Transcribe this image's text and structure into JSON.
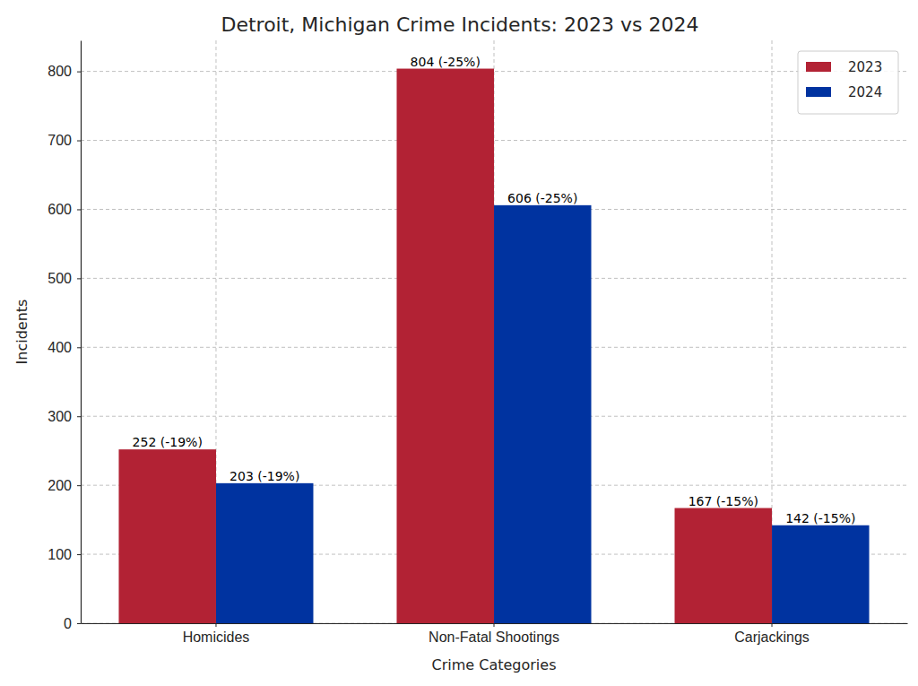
{
  "chart_data": {
    "type": "bar",
    "title": "Detroit, Michigan Crime Incidents: 2023 vs 2024",
    "x_label": "Crime Categories",
    "y_label": "Incidents",
    "categories": [
      "Homicides",
      "Non-Fatal Shootings",
      "Carjackings"
    ],
    "series": [
      {
        "name": "2023",
        "color": "#b22234",
        "values": [
          252,
          804,
          167
        ],
        "value_labels": [
          "252 (-19%)",
          "804 (-25%)",
          "167 (-15%)"
        ]
      },
      {
        "name": "2024",
        "color": "#0033a0",
        "values": [
          203,
          606,
          142
        ],
        "value_labels": [
          "203 (-19%)",
          "606 (-25%)",
          "142 (-15%)"
        ]
      }
    ],
    "ylim": [
      0,
      845
    ],
    "yticks": [
      0,
      100,
      200,
      300,
      400,
      500,
      600,
      700,
      800
    ],
    "grid": true,
    "legend": "upper right",
    "data_labels": true
  }
}
